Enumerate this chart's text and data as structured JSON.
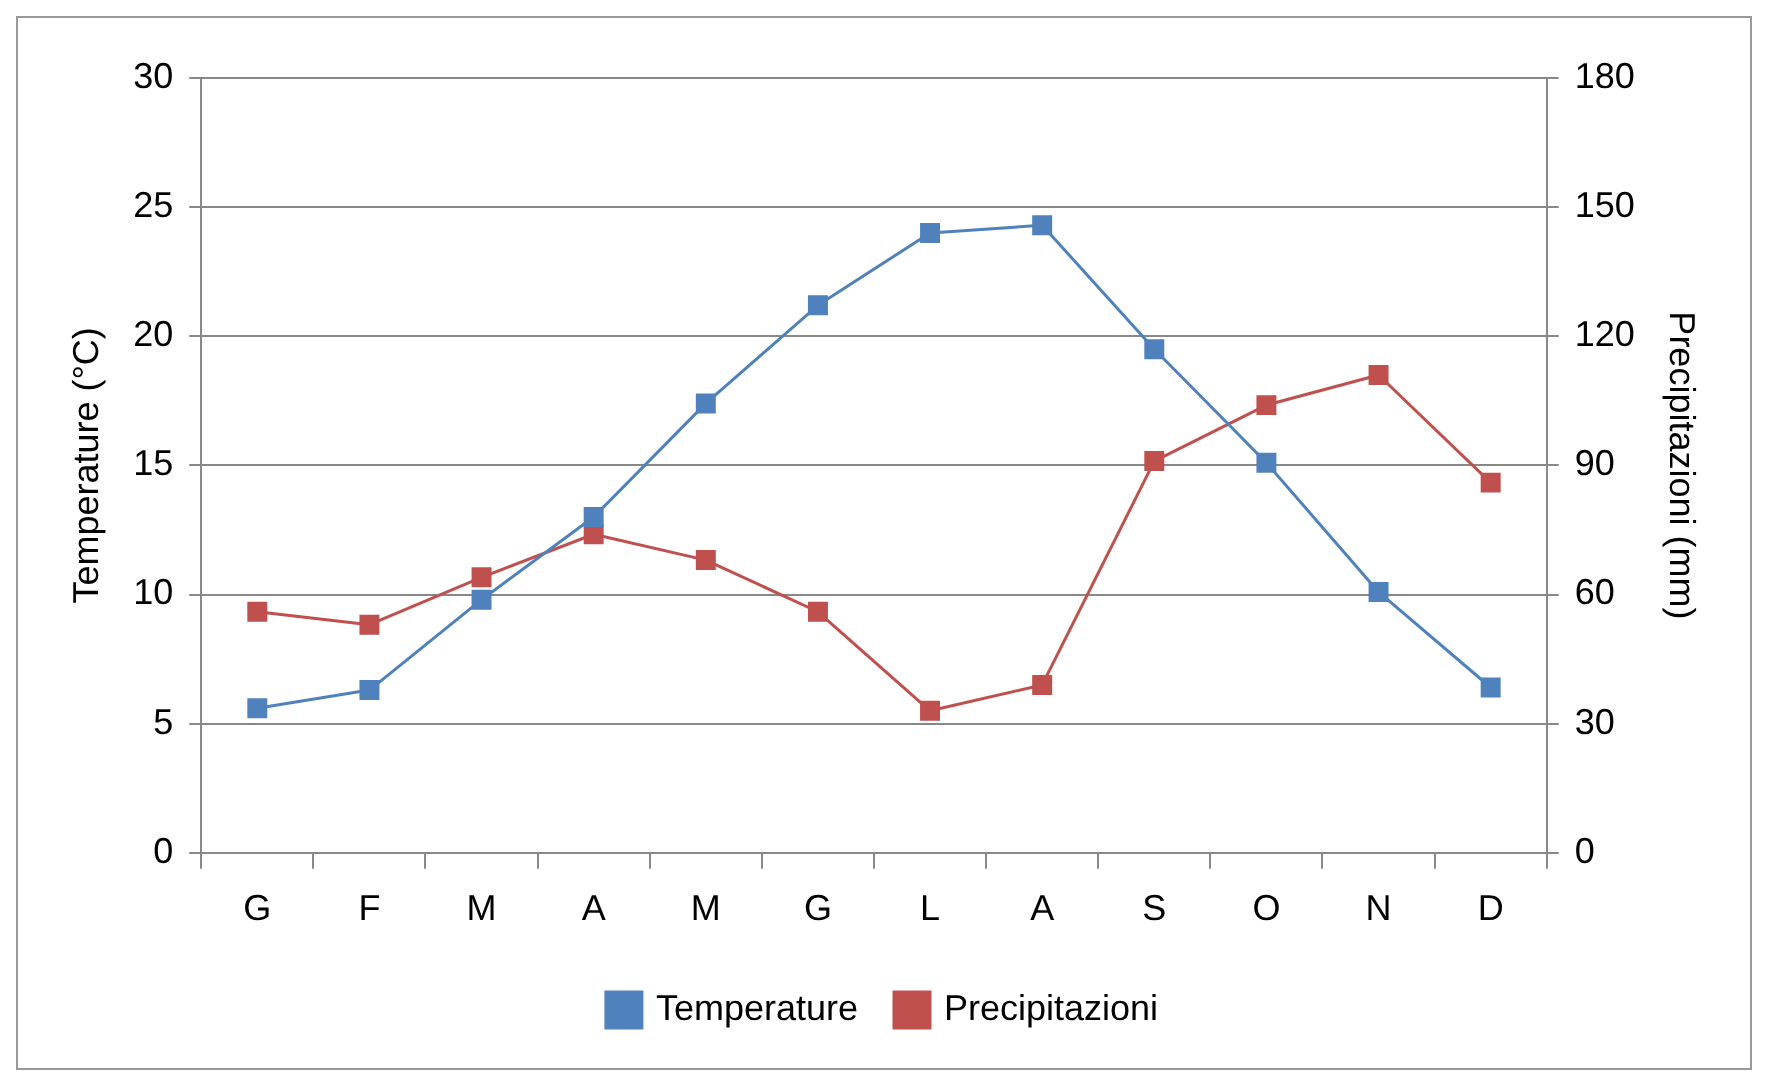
{
  "chart_data": {
    "type": "line",
    "ylabel": "Temperature (°C)",
    "y2label": "Precipitazioni (mm)",
    "categories": [
      "G",
      "F",
      "M",
      "A",
      "M",
      "G",
      "L",
      "A",
      "S",
      "O",
      "N",
      "D"
    ],
    "series": [
      {
        "name": "Temperature",
        "color": "#4f81bd",
        "values": [
          5.6,
          6.3,
          9.8,
          13.0,
          17.4,
          21.2,
          24.0,
          24.3,
          19.5,
          15.1,
          10.1,
          6.4
        ]
      },
      {
        "name": "Precipitazioni",
        "color": "#c0504d",
        "axis": "y2",
        "values": [
          56,
          53,
          64,
          74,
          68,
          56,
          33,
          39,
          91,
          104,
          111,
          86
        ]
      }
    ],
    "ylim": [
      0,
      30
    ],
    "yticks": [
      0,
      5,
      10,
      15,
      20,
      25,
      30
    ],
    "y2lim": [
      0,
      180
    ],
    "y2ticks": [
      0,
      30,
      60,
      90,
      120,
      150,
      180
    ],
    "grid": "y",
    "legend": "bottom",
    "marker": "square",
    "line_style": "solid"
  }
}
